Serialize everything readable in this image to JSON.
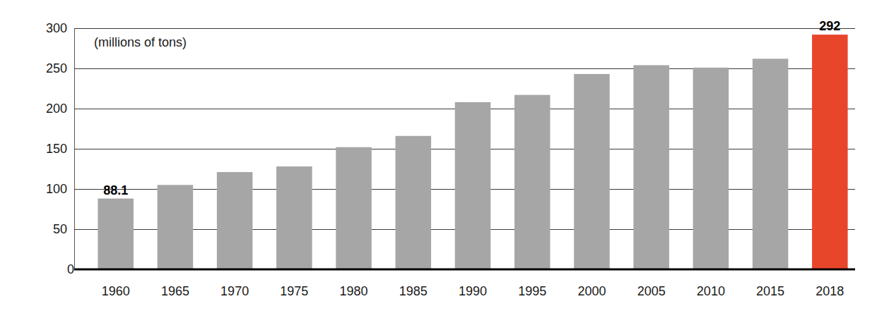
{
  "chart_data": {
    "type": "bar",
    "y_label": "(millions of tons)",
    "categories": [
      "1960",
      "1965",
      "1970",
      "1975",
      "1980",
      "1985",
      "1990",
      "1995",
      "2000",
      "2005",
      "2010",
      "2015",
      "2018"
    ],
    "values": [
      88.1,
      105,
      121,
      128,
      152,
      166,
      208,
      217,
      243,
      254,
      251,
      262,
      292
    ],
    "value_labels": [
      "88.1",
      null,
      null,
      null,
      null,
      null,
      null,
      null,
      null,
      null,
      null,
      null,
      "292"
    ],
    "data_labels": true,
    "colors": [
      "#a6a6a6",
      "#a6a6a6",
      "#a6a6a6",
      "#a6a6a6",
      "#a6a6a6",
      "#a6a6a6",
      "#a6a6a6",
      "#a6a6a6",
      "#a6a6a6",
      "#a6a6a6",
      "#a6a6a6",
      "#a6a6a6",
      "#e8462b"
    ],
    "ylim": [
      0,
      300
    ],
    "yticks": [
      0,
      50,
      100,
      150,
      200,
      250,
      300
    ],
    "grid": true
  }
}
